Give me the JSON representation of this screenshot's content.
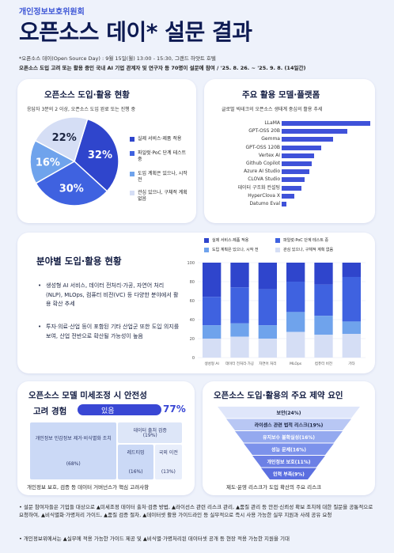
{
  "header": {
    "org": "개인정보보호위원회",
    "title": "오픈소스 데이* 설문 결과",
    "info_line1": "*오픈소스 데이(Open Source Day) : 9월 15일(월) 13:00 - 15:30, 그랜드 하얏트 호텔",
    "info_line2": "오픈소스 도입 고려 또는 활용 중인 국내 AI 기업 관계자 및 연구자 등 70명이 설문에 참여 / '25. 8. 26. ~ '25. 9. 8. (14일간)"
  },
  "adoption": {
    "title": "오픈소스 도입·활용 현황",
    "subtitle": "응답자 3분의 2 이상, 오픈소스 도입 완료 또는 진행 중",
    "colors": [
      "#2f45cc",
      "#3f62e0",
      "#6fa3ec",
      "#d5def5"
    ],
    "slices": [
      {
        "label": "32%",
        "value": 32,
        "legend": "실제 서비스·제품 적용"
      },
      {
        "label": "30%",
        "value": 30,
        "legend": "파일럿·PoC 단계 테스트 중"
      },
      {
        "label": "16%",
        "value": 16,
        "legend": "도입 계획은 있으나, 시작 전"
      },
      {
        "label": "22%",
        "value": 22,
        "legend": "관심 있으나, 구체적 계획 없음"
      }
    ]
  },
  "models": {
    "title": "주요 활용 모델·플랫폼",
    "subtitle": "글로벌 빅테크의 오픈소스 생태계 중심의 활용 추세",
    "bar_color": "#3f52d9",
    "items": [
      {
        "name": "LLaMA",
        "value": 100
      },
      {
        "name": "GPT-OSS 20B",
        "value": 74
      },
      {
        "name": "Gemma",
        "value": 58
      },
      {
        "name": "GPT-OSS 120B",
        "value": 45
      },
      {
        "name": "Vertex AI",
        "value": 37
      },
      {
        "name": "Github Copilot",
        "value": 34
      },
      {
        "name": "Azure AI Studio",
        "value": 31
      },
      {
        "name": "CLOVA Studio",
        "value": 26
      },
      {
        "name": "데이터 구조화 컨설팅",
        "value": 22
      },
      {
        "name": "HyperClova X",
        "value": 14
      },
      {
        "name": "Datumo Eval",
        "value": 5
      }
    ]
  },
  "sector": {
    "title": "분야별 도입·활용 현황",
    "bullets": [
      "생성형 AI 서비스, 데이터 전처리·가공, 자연어 처리(NLP), MLOps, 컴퓨터 비전(VC) 등 다양한 분야에서 활용 확산 추세",
      "투자·의료·산업 등이 포함된 기타 산업군 또한 도입 의지를 보여, 산업 전반으로 확산될 가능성이 높음"
    ],
    "legend": [
      "실제 서비스·제품 적용",
      "파일럿·PoC 단계 테스트 중",
      "도입 계획은 있으나, 시작 전",
      "관심 있으나, 구체적 계획 없음"
    ],
    "colors": [
      "#2f45cc",
      "#3f62e0",
      "#6fa3ec",
      "#d5def5"
    ],
    "yticks": [
      "100",
      "80",
      "60",
      "40",
      "20",
      "0"
    ]
  },
  "chart_data": {
    "type": "bar",
    "stacked": true,
    "categories": [
      "생성형 AI",
      "데이터 전처리·가공",
      "자연어 처리",
      "MLOps",
      "컴퓨터 비전",
      "기타"
    ],
    "ylim": [
      0,
      100
    ],
    "series": [
      {
        "name": "실제 서비스·제품 적용",
        "values": [
          36,
          26,
          28,
          20,
          23,
          15
        ]
      },
      {
        "name": "파일럿·PoC 단계 테스트 중",
        "values": [
          30,
          38,
          38,
          32,
          33,
          47
        ]
      },
      {
        "name": "도입 계획은 있으나, 시작 전",
        "values": [
          14,
          14,
          14,
          21,
          20,
          13
        ]
      },
      {
        "name": "관심 있으나, 구체적 계획 없음",
        "values": [
          20,
          22,
          20,
          27,
          24,
          25
        ]
      }
    ]
  },
  "finetune": {
    "title": "오픈소스 모델 미세조정 시 안전성",
    "subtitle": "고려 경험",
    "pill": "있음",
    "percent": "77%",
    "footer": "개인정보 보호, 검증 등 데이터 거버넌스가 핵심 고려사항",
    "colors": [
      "#cbd9f6",
      "#dde6f8",
      "#cbd9f6",
      "#e8eefb"
    ],
    "tree": [
      {
        "label": "개인정보 민감정보 제거·비식별화 조치",
        "pct": "(68%)",
        "value": 68
      },
      {
        "label": "데이터 출처 검증",
        "pct": "(19%)",
        "value": 19
      },
      {
        "label": "레드티밍",
        "pct": "(16%)",
        "value": 16
      },
      {
        "label": "국외 이전",
        "pct": "(13%)",
        "value": 13
      }
    ]
  },
  "constraints": {
    "title": "오픈소스 도입·활용의 주요 제약 요인",
    "footer": "제도·운영 리스크가 도입 확산의 주요 리스크",
    "colors": [
      "#dfe6fa",
      "#b8c7f4",
      "#94a9ef",
      "#7c92eb",
      "#6c80e5",
      "#5b6fe0"
    ],
    "items": [
      {
        "label": "보안(24%)",
        "value": 24
      },
      {
        "label": "라이센스 관련 법적 리스크(19%)",
        "value": 19
      },
      {
        "label": "유지보수 불확실성(16%)",
        "value": 16
      },
      {
        "label": "성능 문제(16%)",
        "value": 16
      },
      {
        "label": "개인정보 보호(11%)",
        "value": 11
      },
      {
        "label": "인력 부족(9%)",
        "value": 9
      }
    ]
  },
  "notes": {
    "line1": "• 설문 참여자들은 기업들 대상으로 ▲미세조정 데이터 출처·검증 방법, ▲라이선스 관련 리스크 관리, ▲품질 관리 등 안전·신뢰성 확보 조치에 대한 질문을 공통적으로 요청하여, ▲비식별화·가명처리 가이드, ▲품질 검증 절차, ▲데이터셋 활용 가이드라인 등 실무적으로 즉시 사용 가능한 실무 지원과 사례 공유 요청",
    "line2": "• 개인정보위에서는 ▲실무에 적용 가능한 가이드 제공 및 ▲비식별·가명처리된 데이터셋 공개 등 현장 적용 가능한 지원을 기대"
  }
}
